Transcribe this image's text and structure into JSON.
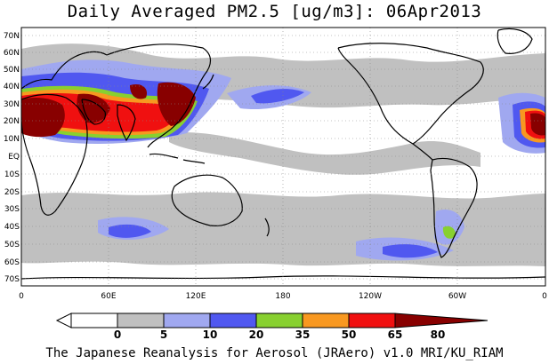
{
  "title": "Daily Averaged PM2.5 [ug/m3]: 06Apr2013",
  "footer": "The Japanese Reanalysis for Aerosol (JRAero) v1.0 MRI/KU_RIAM",
  "lat_labels": [
    "70N",
    "60N",
    "50N",
    "40N",
    "30N",
    "20N",
    "10N",
    "EQ",
    "10S",
    "20S",
    "30S",
    "40S",
    "50S",
    "60S",
    "70S"
  ],
  "lon_labels": [
    "0",
    "60E",
    "120E",
    "180",
    "120W",
    "60W",
    "0"
  ],
  "colorbar": {
    "thresholds": [
      "0",
      "5",
      "10",
      "20",
      "35",
      "50",
      "65",
      "80"
    ],
    "colors": [
      "#ffffff",
      "#c0c0c0",
      "#a0a8f0",
      "#5058f0",
      "#88d030",
      "#f89820",
      "#f01010",
      "#880000"
    ]
  }
}
